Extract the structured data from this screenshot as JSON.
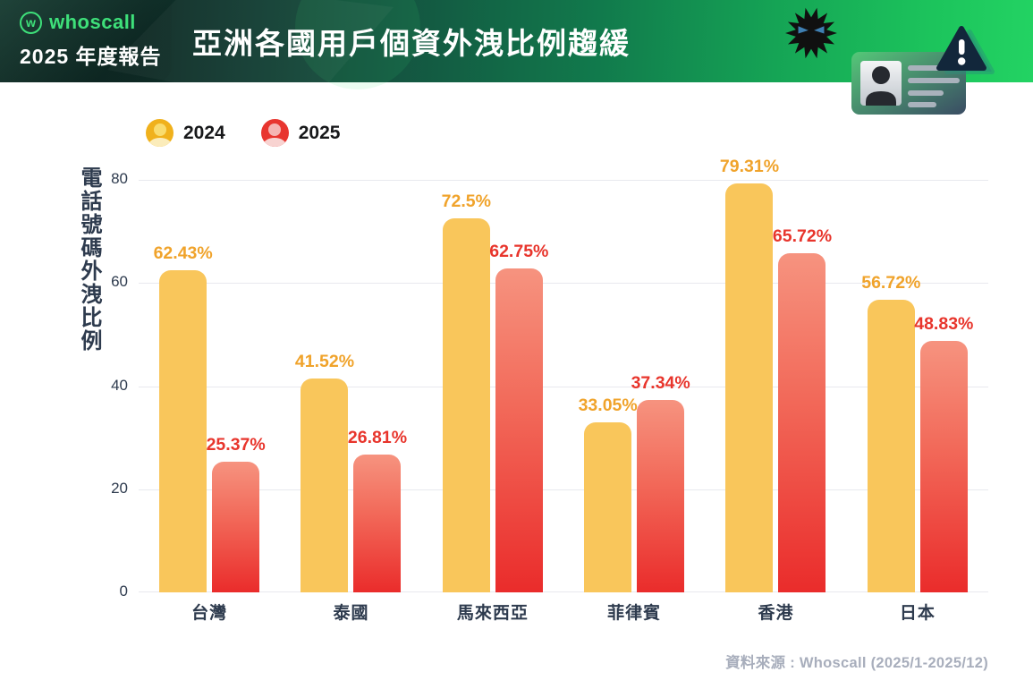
{
  "header": {
    "brand": "whoscall",
    "brand_initial": "w",
    "report_label": "2025 年度報告",
    "title": "亞洲各國用戶個資外洩比例趨緩"
  },
  "icons": {
    "logo": "whoscall-logo-icon",
    "virus": "malware-virus-icon",
    "id_card": "id-card-icon",
    "warning": "warning-triangle-icon"
  },
  "legend": {
    "items": [
      {
        "label": "2024",
        "color": "#F0B11C"
      },
      {
        "label": "2025",
        "color": "#E8352F"
      }
    ]
  },
  "chart_data": {
    "type": "bar",
    "title": "亞洲各國用戶個資外洩比例趨緩",
    "ylabel": "電話號碼外洩比例",
    "xlabel": "",
    "categories": [
      "台灣",
      "泰國",
      "馬來西亞",
      "菲律賓",
      "香港",
      "日本"
    ],
    "series": [
      {
        "name": "2024",
        "values": [
          62.43,
          41.52,
          72.5,
          33.05,
          79.31,
          56.72
        ],
        "labels": [
          "62.43%",
          "41.52%",
          "72.5%",
          "33.05%",
          "79.31%",
          "56.72%"
        ],
        "color": "#F9C65B",
        "label_color": "#F0A32B"
      },
      {
        "name": "2025",
        "values": [
          25.37,
          26.81,
          62.75,
          37.34,
          65.72,
          48.83
        ],
        "labels": [
          "25.37%",
          "26.81%",
          "62.75%",
          "37.34%",
          "65.72%",
          "48.83%"
        ],
        "color_top": "#F6937F",
        "color_bottom": "#EA2C2B",
        "label_color": "#E8352C"
      }
    ],
    "ylim": [
      0,
      80
    ],
    "yticks": [
      0,
      20,
      40,
      60,
      80
    ],
    "grid": true,
    "legend_position": "top-left"
  },
  "footer": {
    "source": "資料來源 : Whoscall (2025/1-2025/12)"
  }
}
